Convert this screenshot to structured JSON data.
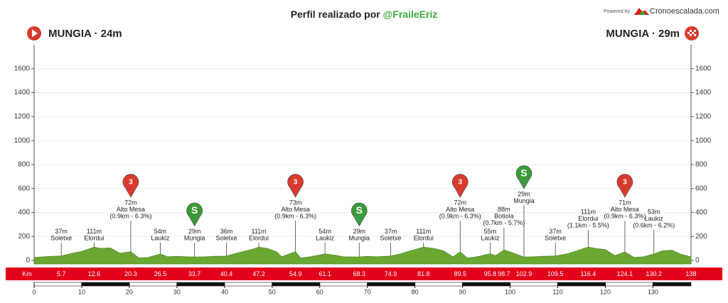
{
  "header": {
    "title_prefix": "Perfil realizado por",
    "title_handle": "@FraileEriz",
    "powered_by": "Powered by",
    "brand": "Cronoescalada.com"
  },
  "start": {
    "label": "MUNGIA · 24m"
  },
  "finish": {
    "label": "MUNGIA · 29m"
  },
  "chart_data": {
    "type": "area",
    "x": [
      0,
      2,
      4,
      5.7,
      8,
      10,
      12.6,
      14,
      16,
      18,
      20.3,
      22,
      24,
      26.5,
      28,
      30,
      32,
      33.7,
      36,
      38,
      40.4,
      42,
      44,
      46,
      47.2,
      49,
      51,
      52,
      54.9,
      56,
      58,
      61.1,
      63,
      65,
      68.3,
      70,
      72,
      74.9,
      77,
      79,
      81.8,
      84,
      86,
      88,
      89.5,
      91,
      93,
      95.8,
      97,
      98.7,
      100,
      102.9,
      105,
      107,
      109.5,
      112,
      114,
      116.4,
      118,
      120,
      122,
      124.1,
      126,
      128,
      130.2,
      132,
      134,
      136,
      138
    ],
    "series": [
      {
        "color": "#6aa832",
        "values": [
          24,
          30,
          35,
          37,
          60,
          75,
          111,
          100,
          105,
          60,
          72,
          20,
          25,
          54,
          30,
          35,
          30,
          29,
          30,
          35,
          36,
          55,
          75,
          95,
          111,
          100,
          70,
          30,
          73,
          20,
          30,
          54,
          45,
          30,
          29,
          35,
          30,
          37,
          55,
          80,
          111,
          100,
          80,
          30,
          72,
          20,
          30,
          55,
          40,
          88,
          70,
          29,
          30,
          35,
          37,
          55,
          80,
          111,
          100,
          90,
          40,
          71,
          25,
          30,
          53,
          80,
          85,
          50,
          29
        ]
      }
    ],
    "xlim": [
      0,
      138
    ],
    "ylim": [
      0,
      1800
    ],
    "yticks": [
      0,
      200,
      400,
      600,
      800,
      1000,
      1200,
      1400,
      1600
    ],
    "xticks": [
      0,
      10,
      20,
      30,
      40,
      50,
      60,
      70,
      80,
      90,
      100,
      110,
      120,
      130
    ],
    "grid": true,
    "km_label": "Km",
    "points": [
      {
        "km": 5.7,
        "elevation": 37,
        "elevation_label": "37m",
        "name": "Soietxe"
      },
      {
        "km": 12.6,
        "elevation": 111,
        "elevation_label": "111m",
        "name": "Elordui"
      },
      {
        "km": 20.3,
        "elevation": 72,
        "elevation_label": "72m",
        "name": "Alto Mesa",
        "detail": "(0.9km - 6.3%)",
        "marker": {
          "type": "climb",
          "label": "3"
        }
      },
      {
        "km": 26.5,
        "elevation": 54,
        "elevation_label": "54m",
        "name": "Laukiz"
      },
      {
        "km": 33.7,
        "elevation": 29,
        "elevation_label": "29m",
        "name": "Mungia",
        "marker": {
          "type": "sprint",
          "label": "S"
        }
      },
      {
        "km": 40.4,
        "elevation": 36,
        "elevation_label": "36m",
        "name": "Soietxe"
      },
      {
        "km": 47.2,
        "elevation": 111,
        "elevation_label": "111m",
        "name": "Elordui"
      },
      {
        "km": 54.9,
        "elevation": 73,
        "elevation_label": "73m",
        "name": "Alto Mesa",
        "detail": "(0.9km - 6.3%)",
        "marker": {
          "type": "climb",
          "label": "3"
        }
      },
      {
        "km": 61.1,
        "elevation": 54,
        "elevation_label": "54m",
        "name": "Laukiz"
      },
      {
        "km": 68.3,
        "elevation": 29,
        "elevation_label": "29m",
        "name": "Mungia",
        "marker": {
          "type": "sprint",
          "label": "S"
        }
      },
      {
        "km": 74.9,
        "elevation": 37,
        "elevation_label": "37m",
        "name": "Soietxe"
      },
      {
        "km": 81.8,
        "elevation": 111,
        "elevation_label": "111m",
        "name": "Elordui"
      },
      {
        "km": 89.5,
        "elevation": 72,
        "elevation_label": "72m",
        "name": "Alto Mesa",
        "detail": "(0.9km - 6.3%)",
        "marker": {
          "type": "climb",
          "label": "3"
        }
      },
      {
        "km": 95.8,
        "elevation": 55,
        "elevation_label": "55m",
        "name": "Laukiz"
      },
      {
        "km": 98.7,
        "elevation": 88,
        "elevation_label": "88m",
        "name": "Botiola",
        "detail": "(0.7km - 5.7%)"
      },
      {
        "km": 102.9,
        "elevation": 29,
        "elevation_label": "29m",
        "name": "Mungia",
        "marker": {
          "type": "sprint",
          "label": "S"
        }
      },
      {
        "km": 109.5,
        "elevation": 37,
        "elevation_label": "37m",
        "name": "Soietxe"
      },
      {
        "km": 116.4,
        "elevation": 111,
        "elevation_label": "111m",
        "name": "Elordui",
        "detail": "(1.1km - 5.5%)"
      },
      {
        "km": 124.1,
        "elevation": 71,
        "elevation_label": "71m",
        "name": "Alto Mesa",
        "detail": "(0.9km - 6.3%)",
        "marker": {
          "type": "climb",
          "label": "3"
        }
      },
      {
        "km": 130.2,
        "elevation": 53,
        "elevation_label": "53m",
        "name": "Laukiz",
        "detail": "(0.6km - 6.2%)"
      },
      {
        "km": 138
      }
    ]
  }
}
